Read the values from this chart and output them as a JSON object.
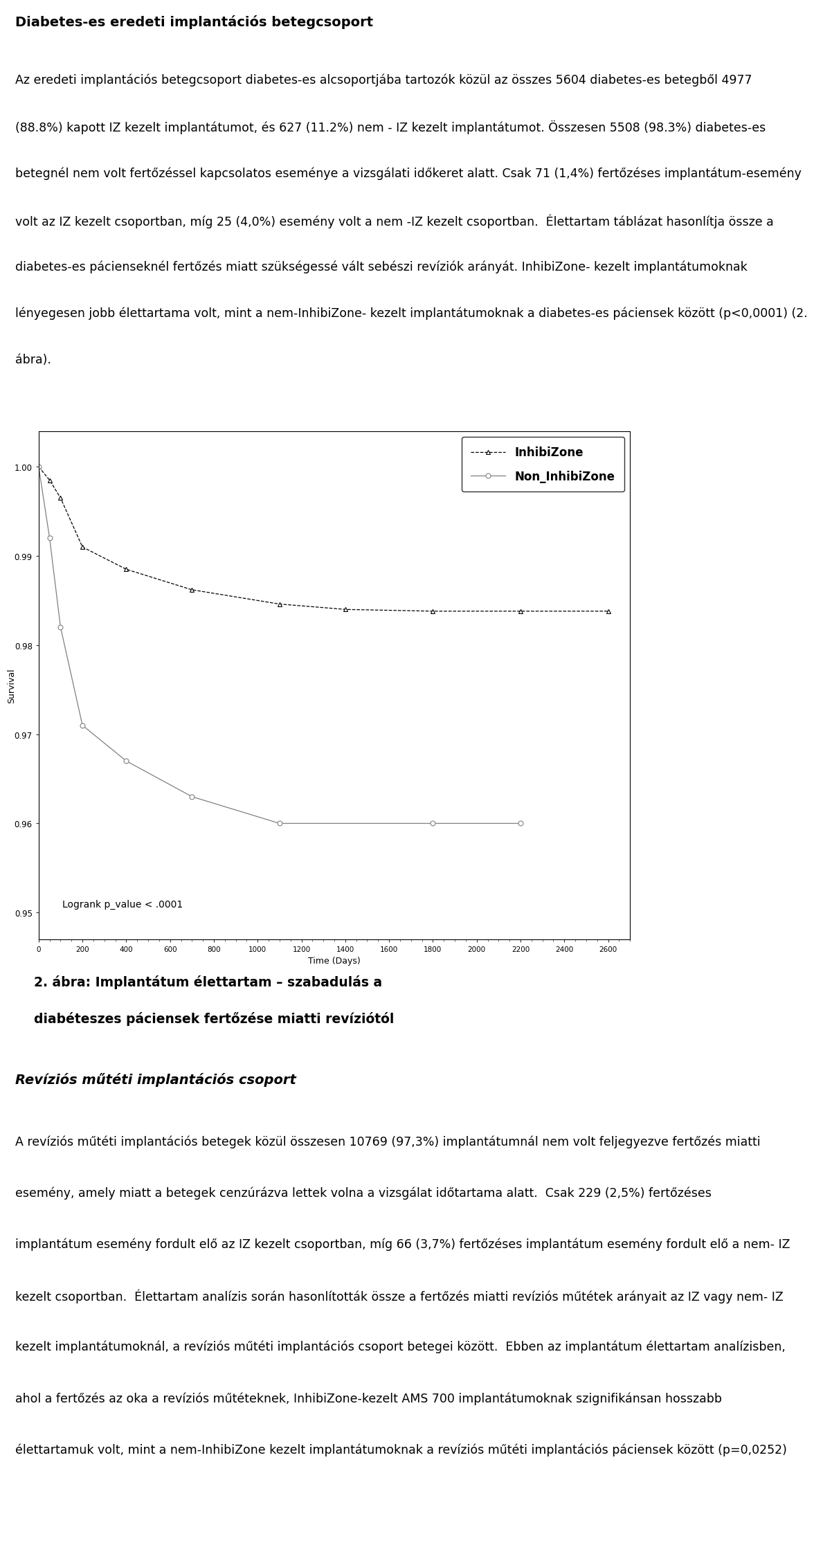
{
  "title1": "Diabetes-es eredeti implantációs betegcsoport",
  "para1_lines": [
    "Az eredeti implantációs betegcsoport diabetes-es alcsoportjába tartozók közül az összes 5604 diabetes-es betegből 4977",
    "(88.8%) kapott IZ kezelt implantátumot, és 627 (11.2%) nem - IZ kezelt implantátumot. Összesen 5508 (98.3%) diabetes-es",
    "betegnél nem volt fertőzéssel kapcsolatos eseménye a vizsgálati időkeret alatt. Csak 71 (1,4%) fertőzéses implantátum-esemény",
    "volt az IZ kezelt csoportban, míg 25 (4,0%) esemény volt a nem -IZ kezelt csoportban.  Élettartam táblázat hasonlítja össze a",
    "diabetes-es pácienseknél fertőzés miatt szükségessé vált sebészi revíziók arányát. InhibiZone- kezelt implantátumoknak",
    "lényegesen jobb élettartama volt, mint a nem-InhibiZone- kezelt implantátumoknak a diabetes-es páciensek között (p<0,0001) (2.",
    "ábra)."
  ],
  "fig_caption_line1": "2. ábra: Implantátum élettartam – szabadulás a",
  "fig_caption_line2": "diabéteszes páciensek fertőzése miatti revíziótól",
  "title2_italic": "Revíziós műtéti implantációs csoport",
  "para2_lines": [
    "A revíziós műtéti implantációs betegek közül összesen 10769 (97,3%) implantátumnál nem volt feljegyezve fertőzés miatti",
    "esemény, amely miatt a betegek cenzúrázva lettek volna a vizsgálat időtartama alatt.  Csak 229 (2,5%) fertőzéses",
    "implantátum esemény fordult elő az IZ kezelt csoportban, míg 66 (3,7%) fertőzéses implantátum esemény fordult elő a nem- IZ",
    "kezelt csoportban.  Élettartam analízis során hasonlították össze a fertőzés miatti revíziós műtétek arányait az IZ vagy nem- IZ",
    "kezelt implantátumoknál, a revíziós műtéti implantációs csoport betegei között.  Ebben az implantátum élettartam analízisben,",
    "ahol a fertőzés az oka a revíziós műtéteknek, InhibiZone-kezelt AMS 700 implantátumoknak szignifikánsan hosszabb",
    "élettartamuk volt, mint a nem-InhibiZone kezelt implantátumoknak a revíziós műtéti implantációs páciensek között (p=0,0252)"
  ],
  "izone_x": [
    0,
    50,
    100,
    200,
    400,
    700,
    1100,
    1400,
    1800,
    2200,
    2600
  ],
  "izone_y": [
    1.0,
    0.9985,
    0.9965,
    0.991,
    0.9885,
    0.9862,
    0.9846,
    0.984,
    0.9838,
    0.9838,
    0.9838
  ],
  "nonizone_x": [
    0,
    50,
    100,
    200,
    400,
    700,
    1100,
    1800,
    2200
  ],
  "nonizone_y": [
    1.0,
    0.992,
    0.982,
    0.971,
    0.967,
    0.963,
    0.96,
    0.96,
    0.96
  ],
  "ylim": [
    0.947,
    1.004
  ],
  "xlim": [
    0,
    2700
  ],
  "yticks": [
    1.0,
    0.99,
    0.98,
    0.97,
    0.96,
    0.95
  ],
  "ytick_labels": [
    "1.00",
    "0.99",
    "0.98",
    "0.97",
    "0.96",
    "0.95"
  ],
  "xticks": [
    0,
    200,
    400,
    600,
    800,
    1000,
    1200,
    1400,
    1600,
    1800,
    2000,
    2200,
    2400,
    2600
  ],
  "ylabel": "Survival",
  "xlabel": "Time (Days)",
  "logrank_text": "Logrank p_value < .0001",
  "legend_labels": [
    "InhibiZone",
    "Non_InhibiZone"
  ],
  "background_color": "#ffffff"
}
